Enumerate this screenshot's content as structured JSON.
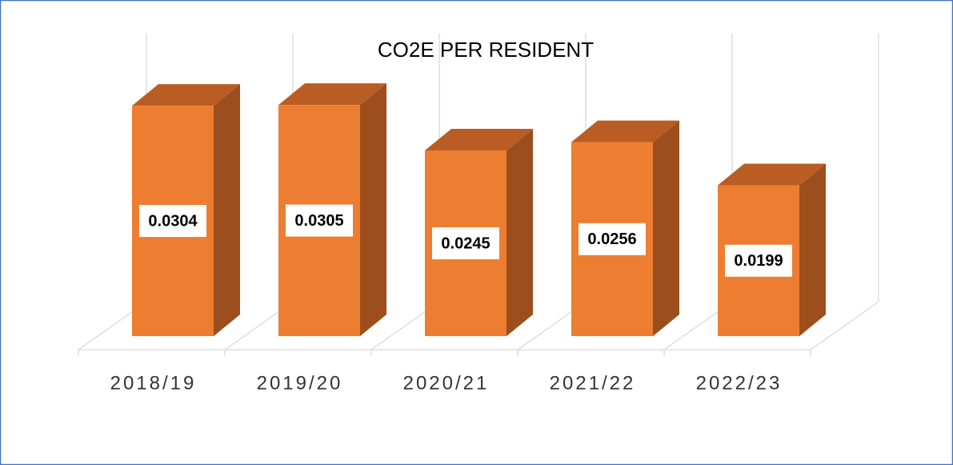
{
  "chart_data": {
    "type": "bar3d",
    "title": "CO2E PER RESIDENT",
    "categories": [
      "2018/19",
      "2019/20",
      "2020/21",
      "2021/22",
      "2022/23"
    ],
    "values": [
      0.0304,
      0.0305,
      0.0245,
      0.0256,
      0.0199
    ],
    "color": "#ed7d31",
    "grid": true
  }
}
